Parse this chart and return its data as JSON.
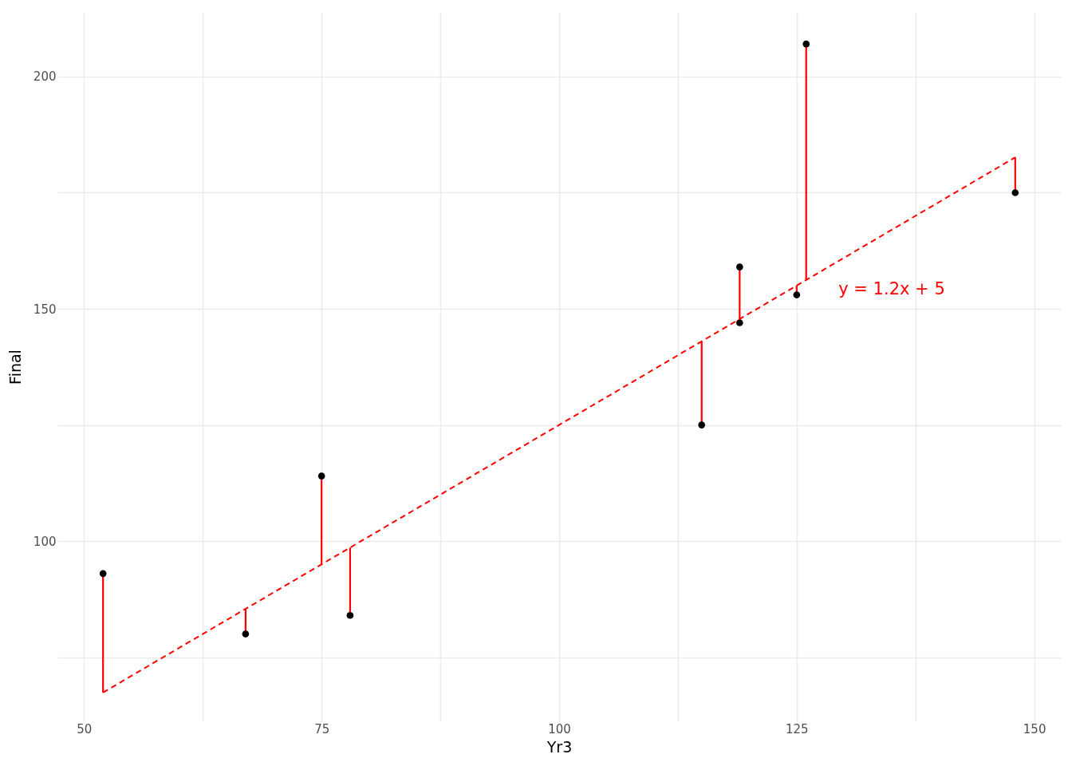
{
  "chart_data": {
    "type": "scatter",
    "xlabel": "Yr3",
    "ylabel": "Final",
    "xlim": [
      47.2,
      152.8
    ],
    "ylim": [
      61.2,
      213.9
    ],
    "xticks": [
      50,
      {
        "value": 62.5,
        "label": null
      },
      75,
      {
        "value": 87.5,
        "label": null
      },
      100,
      {
        "value": 112.5,
        "label": null
      },
      125,
      {
        "value": 137.5,
        "label": null
      },
      150
    ],
    "yticks": [
      {
        "value": 75,
        "label": null
      },
      100,
      {
        "value": 125,
        "label": null
      },
      150,
      {
        "value": 175,
        "label": null
      },
      200
    ],
    "grid": true,
    "series": [
      {
        "marker": "circle",
        "color": "#000000",
        "x": [
          52,
          67,
          75,
          78,
          115,
          119,
          119,
          125,
          126,
          148
        ],
        "values": [
          93,
          80,
          114,
          84,
          125,
          159,
          147,
          153,
          207,
          175
        ],
        "errors": [
          [
            67.4,
            93
          ],
          [
            80,
            85.4
          ],
          [
            95,
            114
          ],
          [
            84,
            98.6
          ],
          [
            125,
            143
          ],
          [
            147.8,
            159
          ],
          [
            147,
            147.8
          ],
          [
            153,
            155
          ],
          [
            156.2,
            207
          ],
          [
            175,
            182.6
          ]
        ]
      },
      {
        "type": "line",
        "color": "#ff0000",
        "line_style": "dashed",
        "x": [
          52,
          148
        ],
        "values": [
          67.4,
          182.6
        ]
      }
    ],
    "annotations": [
      "y = 1.2x + 5"
    ]
  }
}
